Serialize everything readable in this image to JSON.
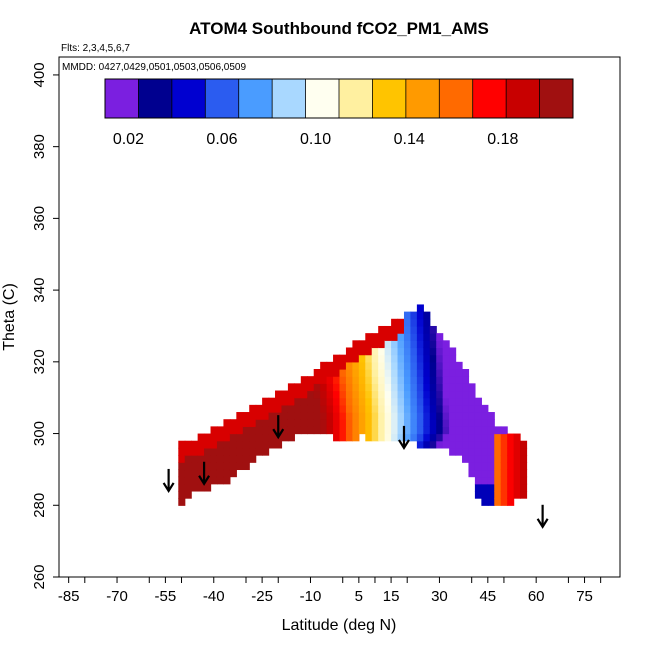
{
  "chart_data": {
    "type": "heatmap",
    "title": "ATOM4 Southbound fCO2_PM1_AMS",
    "flights_note": "Flts: 2,3,4,5,6,7",
    "dates_note": "MMDD: 0427,0429,0501,0503,0506,0509",
    "xlabel": "Latitude (deg N)",
    "ylabel": "Theta (C)",
    "xlim": [
      -88,
      86
    ],
    "ylim": [
      260,
      405
    ],
    "x_ticks": [
      "-85",
      "-70",
      "-55",
      "-40",
      "-25",
      "-10",
      "5",
      "15",
      "30",
      "45",
      "60",
      "75"
    ],
    "x_tick_values": [
      -85,
      -70,
      -55,
      -40,
      -25,
      -10,
      5,
      15,
      30,
      45,
      60,
      75
    ],
    "y_ticks": [
      "260",
      "280",
      "300",
      "320",
      "340",
      "360",
      "380",
      "400"
    ],
    "y_tick_values": [
      260,
      280,
      300,
      320,
      340,
      360,
      380,
      400
    ],
    "colorbar": {
      "min": 0.01,
      "max": 0.21,
      "tick_labels": [
        "0.02",
        "0.06",
        "0.10",
        "0.14",
        "0.18"
      ],
      "tick_values": [
        0.02,
        0.06,
        0.1,
        0.14,
        0.18
      ],
      "colors": [
        "#7b1fe0",
        "#00008f",
        "#0000d0",
        "#2b5cf0",
        "#4a9cff",
        "#a9d8ff",
        "#fffff0",
        "#fff0a0",
        "#ffc400",
        "#ff9a00",
        "#ff6a00",
        "#ff0000",
        "#c80000",
        "#a01010"
      ]
    },
    "arrows": [
      {
        "lat": -54,
        "theta": 284
      },
      {
        "lat": -43,
        "theta": 286
      },
      {
        "lat": -20,
        "theta": 299
      },
      {
        "lat": 19,
        "theta": 296
      },
      {
        "lat": 62,
        "theta": 274
      }
    ],
    "field": {
      "lat_range": [
        -51,
        57
      ],
      "surface_theta": [
        [
          -51,
          280.5
        ],
        [
          -45,
          285
        ],
        [
          -40,
          286
        ],
        [
          -35,
          288
        ],
        [
          -28,
          293
        ],
        [
          -22,
          297
        ],
        [
          -16,
          299.5
        ],
        [
          -10,
          301
        ],
        [
          -4,
          300
        ],
        [
          0,
          299.5
        ],
        [
          6,
          300
        ],
        [
          14,
          298.5
        ],
        [
          22,
          298
        ],
        [
          30,
          297
        ],
        [
          38,
          293
        ],
        [
          42,
          283
        ],
        [
          45,
          281
        ],
        [
          50,
          281
        ],
        [
          54,
          282
        ],
        [
          57,
          283
        ]
      ],
      "top_theta": [
        [
          -51,
          296
        ],
        [
          -45,
          298
        ],
        [
          -40,
          300.5
        ],
        [
          -35,
          303
        ],
        [
          -30,
          305.5
        ],
        [
          -25,
          308
        ],
        [
          -20,
          310.5
        ],
        [
          -15,
          313
        ],
        [
          -10,
          316
        ],
        [
          -5,
          319
        ],
        [
          0,
          322
        ],
        [
          5,
          325
        ],
        [
          10,
          327.5
        ],
        [
          15,
          330
        ],
        [
          20,
          332.5
        ],
        [
          24,
          335
        ],
        [
          28,
          330
        ],
        [
          32,
          325
        ],
        [
          36,
          320
        ],
        [
          40,
          313
        ],
        [
          44,
          307
        ],
        [
          48,
          302
        ],
        [
          52,
          299
        ],
        [
          55,
          298
        ],
        [
          57,
          298
        ]
      ]
    }
  }
}
